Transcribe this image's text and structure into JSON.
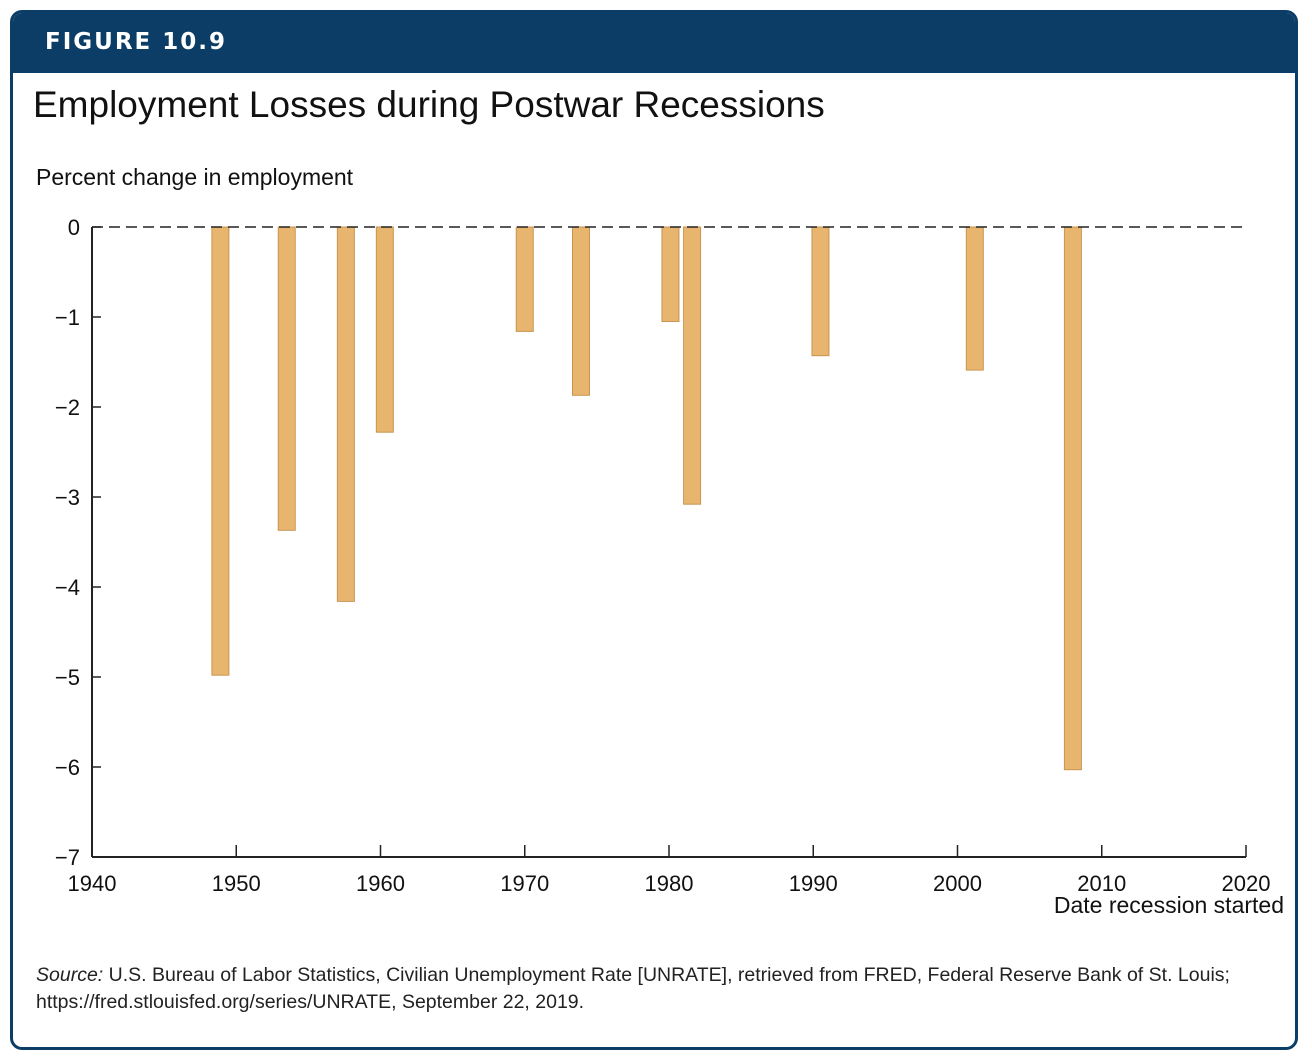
{
  "figure_label": "FIGURE 10.9",
  "colors": {
    "banner": "#0b3d66",
    "bar_fill": "#e8b56f",
    "bar_stroke": "#c99550"
  },
  "source": {
    "label": "Source:",
    "text": " U.S. Bureau of Labor Statistics, Civilian Unemployment Rate [UNRATE], retrieved from FRED, Federal Reserve Bank of St. Louis; https://fred.stlouisfed.org/series/UNRATE, September 22, 2019."
  },
  "chart_data": {
    "type": "bar",
    "title": "Employment Losses during Postwar Recessions",
    "ylabel": "Percent change in employment",
    "xlabel": "Date recession started",
    "xlim": [
      1940,
      2020
    ],
    "ylim": [
      -7,
      0
    ],
    "xticks": [
      1940,
      1950,
      1960,
      1970,
      1980,
      1990,
      2000,
      2010,
      2020
    ],
    "yticks": [
      0,
      -1,
      -2,
      -3,
      -4,
      -5,
      -6,
      -7
    ],
    "ytick_labels": [
      "0",
      "−1",
      "−2",
      "−3",
      "−4",
      "−5",
      "−6",
      "−7"
    ],
    "zero_line": "dashed",
    "grid": false,
    "legend": "none",
    "bars": [
      {
        "x": 1948.9,
        "value": -4.98
      },
      {
        "x": 1953.5,
        "value": -3.37
      },
      {
        "x": 1957.6,
        "value": -4.16
      },
      {
        "x": 1960.3,
        "value": -2.28
      },
      {
        "x": 1970.0,
        "value": -1.16
      },
      {
        "x": 1973.9,
        "value": -1.87
      },
      {
        "x": 1980.1,
        "value": -1.05
      },
      {
        "x": 1981.6,
        "value": -3.08
      },
      {
        "x": 1990.5,
        "value": -1.43
      },
      {
        "x": 2001.2,
        "value": -1.59
      },
      {
        "x": 2008.0,
        "value": -6.03
      }
    ]
  }
}
